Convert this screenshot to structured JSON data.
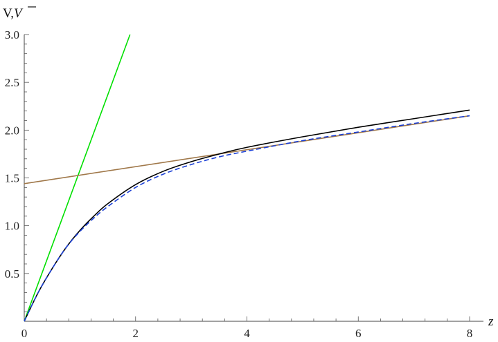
{
  "chart_data": {
    "type": "line",
    "xlabel": "z",
    "ylabel": {
      "prefix": "V,",
      "italic": "V",
      "overline": true
    },
    "xlim": [
      0,
      8
    ],
    "ylim": [
      0,
      3.0
    ],
    "x_ticks": [
      0,
      2,
      4,
      6,
      8
    ],
    "x_tick_labels": [
      "0",
      "2",
      "4",
      "6",
      "8"
    ],
    "y_ticks": [
      0.5,
      1.0,
      1.5,
      2.0,
      2.5,
      3.0
    ],
    "y_tick_labels": [
      "0.5",
      "1.0",
      "1.5",
      "2.0",
      "2.5",
      "3.0"
    ],
    "grid": false,
    "legend": "none",
    "series": [
      {
        "color": "#00e000",
        "style": "solid",
        "x": [
          0,
          1.9
        ],
        "y": [
          0,
          3.0
        ]
      },
      {
        "color": "#a0784a",
        "style": "solid",
        "x": [
          0,
          8
        ],
        "y": [
          1.44,
          2.15
        ]
      },
      {
        "color": "#000000",
        "style": "solid",
        "x": [
          0,
          0.25,
          0.5,
          0.75,
          1.0,
          1.25,
          1.5,
          2.0,
          2.5,
          3.0,
          3.5,
          4.0,
          5.0,
          6.0,
          7.0,
          8.0
        ],
        "y": [
          0,
          0.3,
          0.55,
          0.77,
          0.95,
          1.1,
          1.23,
          1.43,
          1.57,
          1.67,
          1.75,
          1.82,
          1.93,
          2.03,
          2.12,
          2.21
        ]
      },
      {
        "color": "#1a3fd6",
        "style": "dashed",
        "x": [
          0,
          0.25,
          0.5,
          0.75,
          1.0,
          1.25,
          1.5,
          2.0,
          2.5,
          3.0,
          3.5,
          4.0,
          5.0,
          6.0,
          7.0,
          8.0
        ],
        "y": [
          0,
          0.3,
          0.55,
          0.77,
          0.94,
          1.08,
          1.2,
          1.4,
          1.54,
          1.64,
          1.72,
          1.78,
          1.89,
          1.98,
          2.07,
          2.15
        ]
      }
    ]
  }
}
